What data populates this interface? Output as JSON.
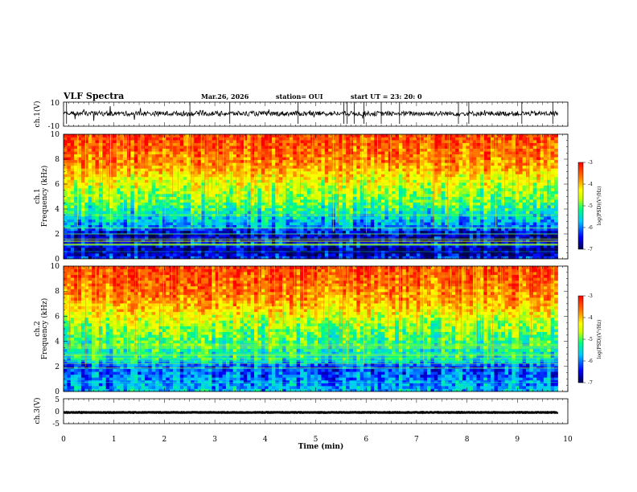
{
  "header": {
    "title": "VLF Spectra",
    "date": "Mar.26, 2026",
    "station": "station= OUI",
    "start": "start  UT  =   23: 20: 0"
  },
  "chart_data": {
    "type": "heatmap",
    "xlabel": "Time  (min)",
    "xlim": [
      0,
      10
    ],
    "x_ticks": [
      "0",
      "1",
      "2",
      "3",
      "4",
      "5",
      "6",
      "7",
      "8",
      "9",
      "10"
    ],
    "panels": [
      {
        "name": "ch1-waveform",
        "type": "line",
        "ylabel": "ch.1(V)",
        "ylim": [
          -10,
          10
        ],
        "y_ticks": [
          "10",
          "-10"
        ],
        "data_end_min": 9.8,
        "baseline_V": 0.5,
        "color": "#000000"
      },
      {
        "name": "ch1-spectrogram",
        "type": "heatmap",
        "ylabel_top": "ch.1",
        "ylabel": "Frequency  (kHz)",
        "ylim": [
          0,
          10
        ],
        "y_ticks": [
          "0",
          "2",
          "4",
          "6",
          "8",
          "10"
        ],
        "data_end_min": 9.8,
        "log_psd_profile": [
          {
            "f": 0,
            "v": -6.3
          },
          {
            "f": 0.6,
            "v": -6.8
          },
          {
            "f": 1.2,
            "v": -6.5
          },
          {
            "f": 2.0,
            "v": -6.7
          },
          {
            "f": 2.5,
            "v": -6.0
          },
          {
            "f": 3.5,
            "v": -5.5
          },
          {
            "f": 4.5,
            "v": -5.0
          },
          {
            "f": 5.5,
            "v": -4.7
          },
          {
            "f": 6.5,
            "v": -4.3
          },
          {
            "f": 7.5,
            "v": -3.8
          },
          {
            "f": 10,
            "v": -3.3
          }
        ]
      },
      {
        "name": "ch2-spectrogram",
        "type": "heatmap",
        "ylabel_top": "ch.2",
        "ylabel": "Frequency  (kHz)",
        "ylim": [
          0,
          10
        ],
        "y_ticks": [
          "0",
          "2",
          "4",
          "6",
          "8",
          "10"
        ],
        "data_end_min": 9.8,
        "log_psd_profile": [
          {
            "f": 0,
            "v": -5.7
          },
          {
            "f": 1.0,
            "v": -6.0
          },
          {
            "f": 2.0,
            "v": -6.2
          },
          {
            "f": 2.6,
            "v": -5.4
          },
          {
            "f": 3.5,
            "v": -5.3
          },
          {
            "f": 4.5,
            "v": -5.0
          },
          {
            "f": 5.5,
            "v": -4.7
          },
          {
            "f": 6.5,
            "v": -4.2
          },
          {
            "f": 7.5,
            "v": -3.8
          },
          {
            "f": 10,
            "v": -3.3
          }
        ]
      },
      {
        "name": "ch3-waveform",
        "type": "line",
        "ylabel": "ch.3(V)",
        "ylim": [
          -5,
          5
        ],
        "y_ticks": [
          "5",
          "0",
          "-5"
        ],
        "data_end_min": 9.8,
        "baseline_V": -0.5,
        "color": "#000000"
      }
    ],
    "colorbar": {
      "label": "log(PSD)(V²/Hz)",
      "range": [
        -7,
        -3
      ],
      "ticks": [
        "-3",
        "-4",
        "-5",
        "-6",
        "-7"
      ],
      "colormap": [
        "#000050",
        "#0000ff",
        "#00c8ff",
        "#00ff80",
        "#c8ff00",
        "#ffff00",
        "#ff8000",
        "#ff0000"
      ]
    }
  }
}
